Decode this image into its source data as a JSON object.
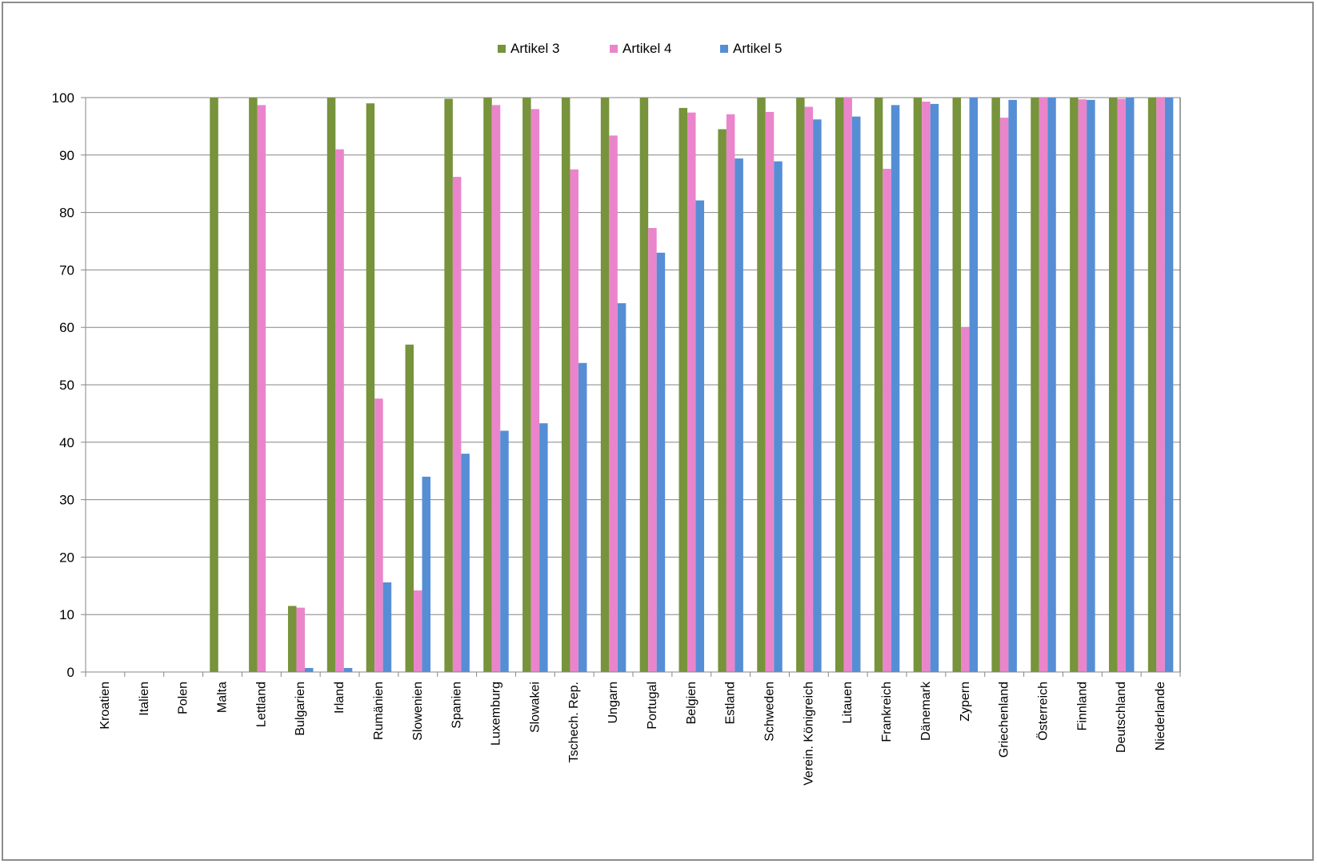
{
  "chart_data": {
    "type": "bar",
    "title": "",
    "xlabel": "",
    "ylabel": "",
    "ylim": [
      0,
      100
    ],
    "yticks": [
      0,
      10,
      20,
      30,
      40,
      50,
      60,
      70,
      80,
      90,
      100
    ],
    "grid": true,
    "legend_position": "top",
    "categories": [
      "Kroatien",
      "Italien",
      "Polen",
      "Malta",
      "Lettland",
      "Bulgarien",
      "Irland",
      "Rumänien",
      "Slowenien",
      "Spanien",
      "Luxemburg",
      "Slowakei",
      "Tschech. Rep.",
      "Ungarn",
      "Portugal",
      "Belgien",
      "Estland",
      "Schweden",
      "Verein. Königreich",
      "Litauen",
      "Frankreich",
      "Dänemark",
      "Zypern",
      "Griechenland",
      "Österreich",
      "Finnland",
      "Deutschland",
      "Niederlande"
    ],
    "series": [
      {
        "name": "Artikel 3",
        "color": "#77933c",
        "values": [
          0,
          0,
          0,
          100,
          100,
          11.5,
          100,
          99,
          57,
          99.8,
          100,
          100,
          100,
          100,
          100,
          98.2,
          94.5,
          100,
          100,
          100,
          100,
          100,
          100,
          100,
          100,
          100,
          100,
          100
        ]
      },
      {
        "name": "Artikel 4",
        "color": "#ea85cc",
        "values": [
          0,
          0,
          0,
          0,
          98.7,
          11.2,
          91,
          47.6,
          14.2,
          86.2,
          98.7,
          98,
          87.5,
          93.4,
          77.3,
          97.4,
          97.1,
          97.5,
          98.4,
          100,
          87.6,
          99.3,
          59.9,
          96.5,
          100,
          99.7,
          99.8,
          100
        ]
      },
      {
        "name": "Artikel 5",
        "color": "#558ed5",
        "values": [
          0,
          0,
          0,
          0,
          0,
          0.7,
          0.7,
          15.6,
          34,
          38,
          42,
          43.3,
          53.8,
          64.2,
          73,
          82.1,
          89.4,
          88.9,
          96.2,
          96.7,
          98.7,
          98.9,
          100,
          99.6,
          100,
          99.6,
          100,
          100
        ]
      }
    ]
  }
}
